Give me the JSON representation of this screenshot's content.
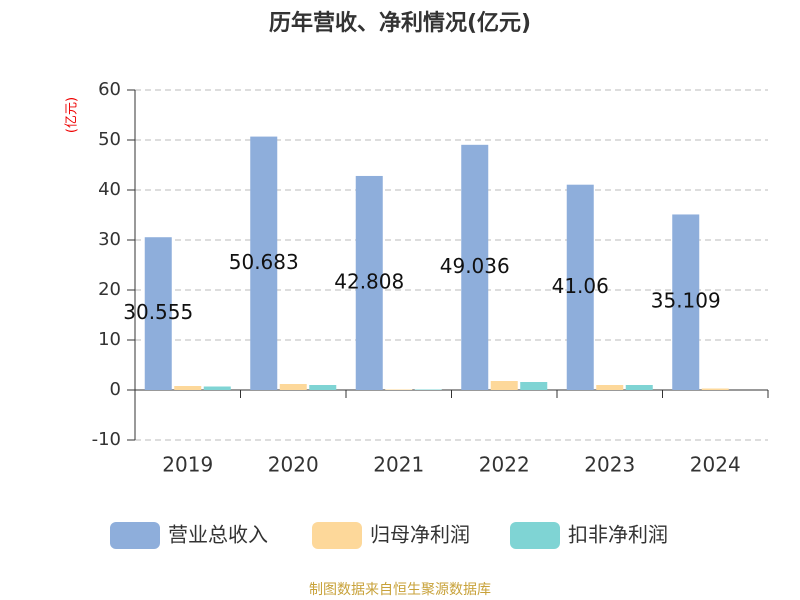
{
  "chart_data": {
    "type": "bar",
    "title": "历年营收、净利情况(亿元)",
    "y_axis_label": "(亿元)",
    "categories": [
      "2019",
      "2020",
      "2021",
      "2022",
      "2023",
      "2024"
    ],
    "series": [
      {
        "name": "营业总收入",
        "color": "#8eaedb",
        "values": [
          30.555,
          50.683,
          42.808,
          49.036,
          41.06,
          35.109
        ]
      },
      {
        "name": "归母净利润",
        "color": "#fdd89a",
        "values": [
          0.8,
          1.2,
          0.1,
          1.8,
          1.0,
          0.3
        ]
      },
      {
        "name": "扣非净利润",
        "color": "#7fd4d4",
        "values": [
          0.7,
          1.0,
          0.1,
          1.6,
          1.0,
          0
        ]
      }
    ],
    "label_series": 0,
    "ylim": [
      -10,
      60
    ],
    "yticks": [
      -10,
      0,
      10,
      20,
      30,
      40,
      50,
      60
    ],
    "grid": true,
    "legend": "bottom",
    "source": "制图数据来自恒生聚源数据库"
  }
}
